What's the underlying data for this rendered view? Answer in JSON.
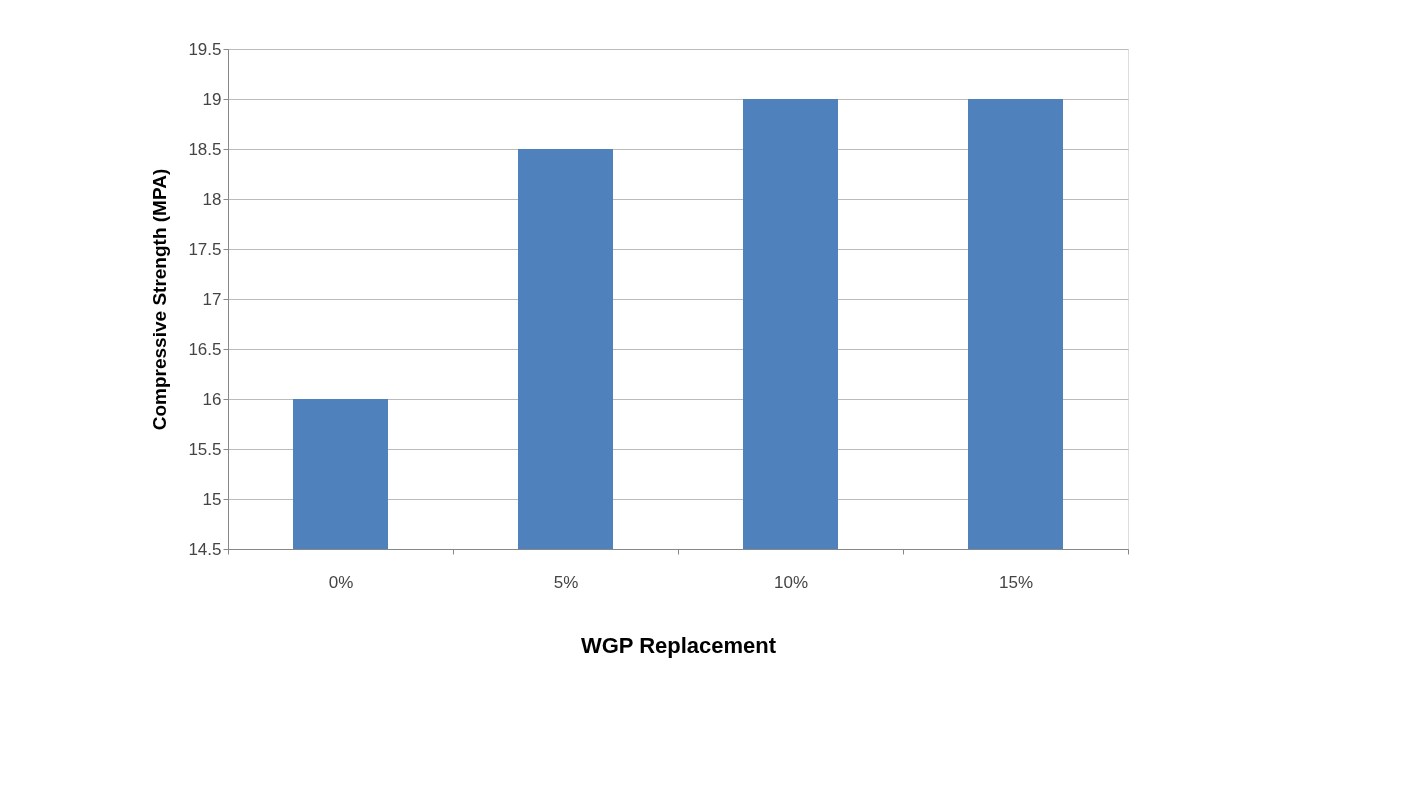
{
  "chart_data": {
    "type": "bar",
    "xlabel": "WGP Replacement",
    "ylabel": "Compressive Strength (MPA)",
    "categories": [
      "0%",
      "5%",
      "10%",
      "15%"
    ],
    "series": [
      {
        "color": "#4f81bd",
        "values": [
          16,
          18.5,
          19,
          19
        ]
      }
    ],
    "ylim": [
      14.5,
      19.5
    ],
    "yticks": [
      14.5,
      15,
      15.5,
      16,
      16.5,
      17,
      17.5,
      18,
      18.5,
      19,
      19.5
    ],
    "grid": "y"
  }
}
